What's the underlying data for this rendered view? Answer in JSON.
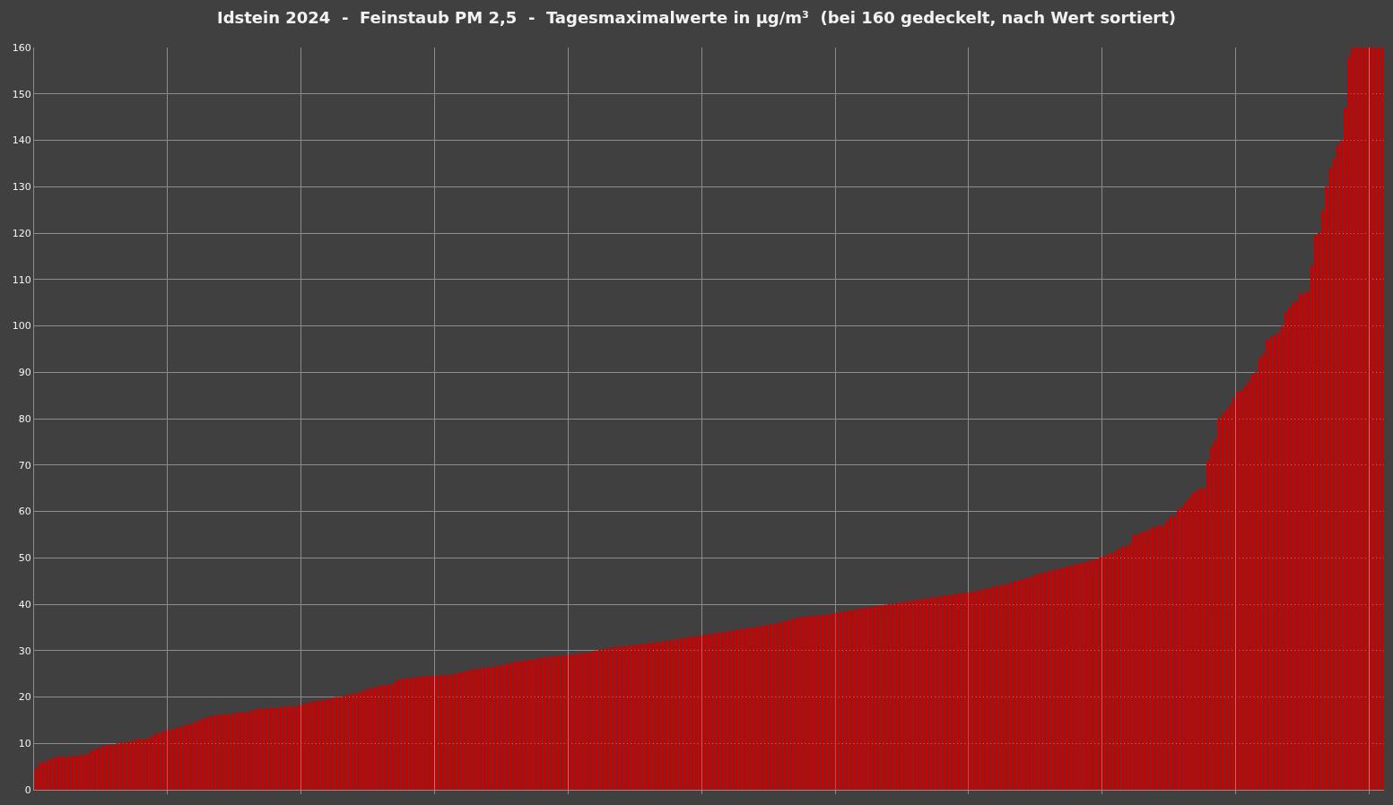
{
  "chart_data": {
    "type": "bar",
    "title": "Idstein 2024  -  Feinstaub PM 2,5  -  Tagesmaximalwerte in µg/m³  (bei 160 gedeckelt, nach Wert sortiert)",
    "categories": [
      null,
      null,
      null,
      null,
      null,
      null,
      null,
      null,
      null,
      null,
      null,
      null,
      null,
      null,
      null,
      null,
      null,
      null,
      null,
      null,
      null,
      null,
      null,
      null,
      null,
      null,
      null,
      null,
      null,
      null,
      null,
      null,
      null,
      null,
      null,
      null,
      null,
      null,
      null,
      null,
      null,
      null,
      null,
      null,
      null,
      null,
      null,
      null,
      null,
      null,
      null,
      null,
      null,
      null,
      null,
      null,
      null,
      null,
      null,
      null,
      null,
      null,
      null,
      null,
      null,
      null,
      null,
      null,
      null,
      null,
      null,
      null,
      null,
      null,
      null,
      null,
      null,
      null,
      null,
      null,
      null,
      null,
      null,
      null,
      null,
      null,
      null,
      null,
      null,
      null,
      null,
      null,
      null,
      null,
      null,
      null,
      null,
      null,
      null,
      null,
      null,
      null,
      null,
      null,
      null,
      null,
      null,
      null,
      null,
      null,
      null,
      null,
      null,
      null,
      null,
      null,
      null,
      null,
      null,
      null,
      null,
      null,
      null,
      null,
      null,
      null,
      null,
      null,
      null,
      null,
      null,
      null,
      null,
      null,
      null,
      null,
      null,
      null,
      null,
      null,
      null,
      null,
      null,
      null,
      null,
      null,
      null,
      null,
      null,
      null,
      null,
      null,
      null,
      null,
      null,
      null,
      null,
      null,
      null,
      null,
      null,
      null,
      null,
      null,
      null,
      null,
      null,
      null,
      null,
      null,
      null,
      null,
      null,
      null,
      null,
      null,
      null,
      null,
      null,
      null,
      null,
      null,
      null,
      null,
      null,
      null,
      null,
      null,
      null,
      null,
      null,
      null,
      null,
      null,
      null,
      null,
      null,
      null,
      null,
      null,
      null,
      null,
      null,
      null,
      null,
      null,
      null,
      null,
      null,
      null,
      null,
      null,
      null,
      null,
      null,
      null,
      null,
      null,
      null,
      null,
      null,
      null,
      null,
      null,
      null,
      null,
      null,
      null,
      null,
      null,
      null,
      null,
      null,
      null,
      null,
      null,
      null,
      null,
      null,
      null,
      null,
      null,
      null,
      null,
      null,
      null,
      null,
      null,
      null,
      null,
      null,
      null,
      null,
      null,
      null,
      null,
      null,
      null,
      null,
      null,
      null,
      null,
      null,
      null,
      null,
      null,
      null,
      null,
      null,
      null,
      null,
      null,
      null,
      null,
      null,
      null,
      null,
      null,
      null,
      null,
      null,
      null,
      null,
      null,
      null,
      null,
      null,
      null,
      null,
      null,
      null,
      null,
      null,
      null,
      null,
      null,
      null,
      null,
      null,
      null,
      null,
      null,
      null,
      null,
      null,
      null,
      null,
      null,
      null,
      null,
      null,
      null,
      null,
      null,
      null,
      null,
      null,
      null,
      null,
      null,
      null,
      null,
      null,
      null,
      null,
      null,
      null,
      null,
      null,
      null,
      null,
      null,
      null,
      null,
      null,
      null,
      null,
      null,
      null,
      null,
      null,
      null,
      null,
      null,
      null,
      null,
      null,
      null,
      null,
      null,
      null,
      null,
      null,
      null,
      null,
      null,
      null,
      null,
      null,
      null,
      null,
      null,
      null,
      null
    ],
    "values": [
      4.5,
      5.7,
      6,
      6.3,
      6.6,
      7,
      7.2,
      7.2,
      7,
      7.3,
      7.3,
      7.3,
      7.5,
      7.7,
      7.7,
      8.5,
      8.8,
      9,
      9.3,
      9.7,
      9.7,
      9.7,
      10,
      10.2,
      10.2,
      10.4,
      10.5,
      10.9,
      10.9,
      10.9,
      11,
      11.4,
      12,
      12.2,
      12.5,
      12.8,
      13,
      13.1,
      13.3,
      13.6,
      13.9,
      14,
      14.3,
      14.6,
      15,
      15.3,
      15.6,
      15.8,
      16,
      16.2,
      16.2,
      16.3,
      16.3,
      16.3,
      16.6,
      16.7,
      16.7,
      16.7,
      17,
      17.2,
      17.5,
      17.5,
      17.5,
      17.6,
      17.7,
      17.7,
      17.8,
      18,
      18,
      18,
      18,
      18.2,
      18.5,
      18.7,
      18.9,
      19,
      19.2,
      19.3,
      19.4,
      19.6,
      19.8,
      20,
      20,
      20.2,
      20.5,
      20.6,
      20.8,
      21,
      21.2,
      21.6,
      21.8,
      22,
      22.2,
      22.5,
      22.6,
      22.6,
      22.7,
      23.5,
      23.8,
      24,
      24,
      24.1,
      24.2,
      24.3,
      24.4,
      24.5,
      24.5,
      24.6,
      24.6,
      24.7,
      24.7,
      24.7,
      24.8,
      25,
      25.2,
      25.4,
      25.6,
      25.8,
      26,
      26.1,
      26.2,
      26.3,
      26.4,
      26.5,
      26.6,
      26.8,
      27,
      27.2,
      27.4,
      27.6,
      27.7,
      27.8,
      27.9,
      28,
      28.1,
      28.2,
      28.4,
      28.5,
      28.6,
      28.7,
      28.8,
      28.8,
      28.9,
      29,
      29.1,
      29.2,
      29.3,
      29.4,
      29.5,
      29.6,
      29.8,
      30,
      30.2,
      30.3,
      30.5,
      30.6,
      30.8,
      30.9,
      31,
      31,
      31.1,
      31.2,
      31.3,
      31.4,
      31.5,
      31.6,
      31.7,
      31.8,
      31.9,
      32,
      32.1,
      32.2,
      32.4,
      32.5,
      32.6,
      32.8,
      32.9,
      33,
      33.1,
      33.2,
      33.4,
      33.5,
      33.6,
      33.7,
      33.9,
      34,
      34.1,
      34.2,
      34.4,
      34.5,
      34.6,
      34.8,
      34.9,
      35,
      35.1,
      35.2,
      35.4,
      35.5,
      35.6,
      35.8,
      36,
      36.2,
      36.4,
      36.6,
      36.8,
      37,
      37.2,
      37.3,
      37.4,
      37.5,
      37.5,
      37.6,
      37.7,
      37.8,
      37.9,
      38,
      38.2,
      38.3,
      38.5,
      38.6,
      38.7,
      38.9,
      39,
      39.1,
      39.2,
      39.4,
      39.5,
      39.6,
      39.8,
      39.9,
      40,
      40.1,
      40.2,
      40.4,
      40.5,
      40.6,
      40.8,
      40.9,
      41,
      41.1,
      41.2,
      41.4,
      41.5,
      41.6,
      41.7,
      41.9,
      42,
      42.1,
      42.2,
      42.3,
      42.4,
      42.5,
      42.6,
      42.8,
      42.9,
      43.1,
      43.3,
      43.5,
      43.7,
      43.9,
      44,
      44.2,
      44.4,
      44.7,
      45,
      45.2,
      45.4,
      45.6,
      45.8,
      46.1,
      46.5,
      46.7,
      46.9,
      47.1,
      47.3,
      47.5,
      47.7,
      47.9,
      48.1,
      48.3,
      48.5,
      48.7,
      48.9,
      49.1,
      49.3,
      49.5,
      49.8,
      50.1,
      50.4,
      50.7,
      51,
      51.4,
      52,
      52.4,
      52.5,
      53,
      55,
      55,
      55.5,
      55.7,
      56,
      56.5,
      56.7,
      57,
      57,
      58,
      59,
      59,
      60.5,
      61,
      62,
      63,
      64,
      64.5,
      65,
      65,
      71,
      74,
      75.5,
      80,
      81,
      82,
      83,
      84.5,
      86,
      86,
      87,
      88,
      89.5,
      90,
      93,
      94,
      97,
      97.5,
      98,
      98.5,
      100,
      103,
      104,
      105,
      105.5,
      107,
      107,
      107.5,
      113,
      119.5,
      120,
      125,
      130,
      134,
      136,
      139,
      140,
      147,
      158,
      160,
      160,
      160,
      160,
      160,
      160,
      160,
      160,
      160
    ],
    "color": "#cc0000",
    "ylim": [
      0,
      160
    ],
    "yticks": [
      0,
      10,
      20,
      30,
      40,
      50,
      60,
      70,
      80,
      90,
      100,
      110,
      120,
      130,
      140,
      150,
      160
    ],
    "grid": true
  }
}
